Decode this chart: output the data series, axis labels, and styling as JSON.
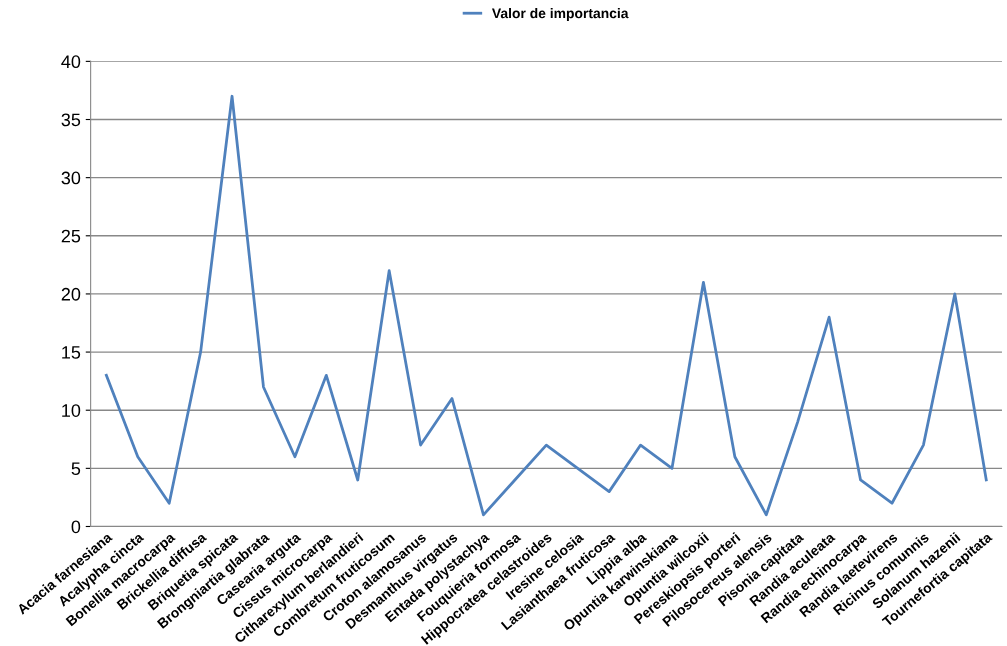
{
  "chart_data": {
    "type": "line",
    "categories": [
      "Acacia farnesiana",
      "Acalypha cincta",
      "Bonellia macrocarpa",
      "Brickellia diffusa",
      "Briquetia spicata",
      "Brongniartia glabrata",
      "Casearia arguta",
      "Cissus microcarpa",
      "Citharexylum berlandieri",
      "Combretum fruticosum",
      "Croton alamosanus",
      "Desmanthus virgatus",
      "Entada polystachya",
      "Fouquieria formosa",
      "Hippocratea celastroides",
      "Iresine celosia",
      "Lasianthaea fruticosa",
      "Lippia alba",
      "Opuntia karwinskiana",
      "Opuntia wilcoxii",
      "Pereskiopsis porteri",
      "Pilosocereus alensis",
      "Pisonia capitata",
      "Randia aculeata",
      "Randia echinocarpa",
      "Randia laetevirens",
      "Ricinus comunnis",
      "Solanum hazenii",
      "Tournefortia capitata"
    ],
    "series": [
      {
        "name": "Valor de importancia",
        "color": "#4f81bd",
        "values": [
          13,
          6,
          2,
          15,
          37,
          12,
          6,
          13,
          4,
          22,
          7,
          11,
          1,
          4,
          7,
          5,
          3,
          7,
          5,
          21,
          6,
          1,
          9,
          18,
          4,
          2,
          7,
          20,
          4
        ]
      }
    ],
    "ylim": [
      0,
      40
    ],
    "yticks": [
      0,
      5,
      10,
      15,
      20,
      25,
      30,
      35,
      40
    ],
    "grid": "y",
    "legend": "top",
    "marker": "none",
    "line_style": "solid"
  }
}
